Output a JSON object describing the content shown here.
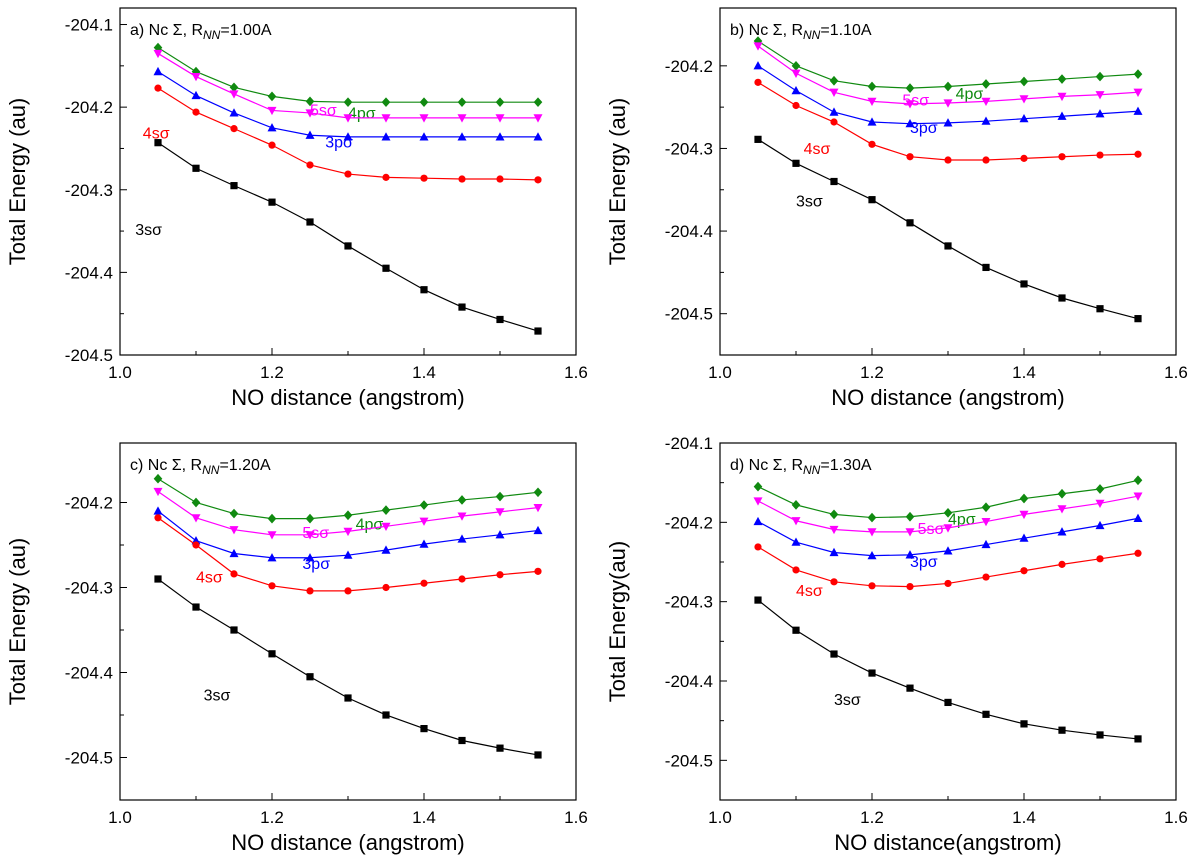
{
  "chart_data": [
    {
      "type": "line",
      "panel": "a",
      "title": "a) Nc Σ, R_NN=1.00A",
      "title_parts": {
        "prefix": "a) Nc Σ, R",
        "sub": "NN",
        "suffix": "=1.00A"
      },
      "xlabel": "NO distance (angstrom)",
      "ylabel": "Total Energy (au)",
      "xlim": [
        1.0,
        1.6
      ],
      "ylim": [
        -204.5,
        -204.08
      ],
      "xticks": [
        "1.0",
        "1.2",
        "1.4",
        "1.6"
      ],
      "yticks": [
        "-204.1",
        "-204.2",
        "-204.3",
        "-204.4",
        "-204.5"
      ],
      "x": [
        1.05,
        1.1,
        1.15,
        1.2,
        1.25,
        1.3,
        1.35,
        1.4,
        1.45,
        1.5,
        1.55
      ],
      "series": [
        {
          "name": "4pσ",
          "color": "#108a10",
          "marker": "diamond",
          "values": [
            -204.128,
            -204.157,
            -204.176,
            -204.187,
            -204.193,
            -204.194,
            -204.194,
            -204.194,
            -204.194,
            -204.194,
            -204.194
          ]
        },
        {
          "name": "5sσ",
          "color": "#ff00ff",
          "marker": "triangle-down",
          "values": [
            -204.135,
            -204.163,
            -204.184,
            -204.204,
            -204.207,
            -204.213,
            -204.213,
            -204.213,
            -204.213,
            -204.213,
            -204.213
          ]
        },
        {
          "name": "3pσ",
          "color": "#0000ff",
          "marker": "triangle-up",
          "values": [
            -204.157,
            -204.186,
            -204.207,
            -204.225,
            -204.234,
            -204.236,
            -204.236,
            -204.236,
            -204.236,
            -204.236,
            -204.236
          ]
        },
        {
          "name": "4sσ",
          "color": "#ff0000",
          "marker": "circle",
          "values": [
            -204.177,
            -204.206,
            -204.226,
            -204.246,
            -204.27,
            -204.281,
            -204.285,
            -204.286,
            -204.287,
            -204.287,
            -204.288
          ]
        },
        {
          "name": "3sσ",
          "color": "#000000",
          "marker": "square",
          "values": [
            -204.243,
            -204.274,
            -204.295,
            -204.315,
            -204.339,
            -204.368,
            -204.395,
            -204.421,
            -204.442,
            -204.457,
            -204.471
          ]
        }
      ]
    },
    {
      "type": "line",
      "panel": "b",
      "title": "b) Nc Σ, R_NN=1.10A",
      "title_parts": {
        "prefix": "b) Nc Σ, R",
        "sub": "NN",
        "suffix": "=1.10A"
      },
      "xlabel": "NO distance (angstrom)",
      "ylabel": "Total Energy (au)",
      "xlim": [
        1.0,
        1.6
      ],
      "ylim": [
        -204.55,
        -204.13
      ],
      "xticks": [
        "1.0",
        "1.2",
        "1.4",
        "1.6"
      ],
      "yticks": [
        "-204.2",
        "-204.3",
        "-204.4",
        "-204.5"
      ],
      "x": [
        1.05,
        1.1,
        1.15,
        1.2,
        1.25,
        1.3,
        1.35,
        1.4,
        1.45,
        1.5,
        1.55
      ],
      "series": [
        {
          "name": "4pσ",
          "color": "#108a10",
          "marker": "diamond",
          "values": [
            -204.17,
            -204.2,
            -204.218,
            -204.225,
            -204.227,
            -204.225,
            -204.222,
            -204.219,
            -204.216,
            -204.213,
            -204.21
          ]
        },
        {
          "name": "5sσ",
          "color": "#ff00ff",
          "marker": "triangle-down",
          "values": [
            -204.176,
            -204.209,
            -204.232,
            -204.243,
            -204.246,
            -204.245,
            -204.243,
            -204.24,
            -204.237,
            -204.235,
            -204.232
          ]
        },
        {
          "name": "3pσ",
          "color": "#0000ff",
          "marker": "triangle-up",
          "values": [
            -204.2,
            -204.23,
            -204.256,
            -204.268,
            -204.27,
            -204.269,
            -204.267,
            -204.264,
            -204.261,
            -204.258,
            -204.255
          ]
        },
        {
          "name": "4sσ",
          "color": "#ff0000",
          "marker": "circle",
          "values": [
            -204.22,
            -204.248,
            -204.268,
            -204.295,
            -204.31,
            -204.314,
            -204.314,
            -204.312,
            -204.31,
            -204.308,
            -204.307
          ]
        },
        {
          "name": "3sσ",
          "color": "#000000",
          "marker": "square",
          "values": [
            -204.289,
            -204.318,
            -204.34,
            -204.362,
            -204.39,
            -204.418,
            -204.444,
            -204.464,
            -204.481,
            -204.494,
            -204.506
          ]
        }
      ]
    },
    {
      "type": "line",
      "panel": "c",
      "title": "c) Nc Σ, R_NN=1.20A",
      "title_parts": {
        "prefix": "c) Nc Σ, R",
        "sub": "NN",
        "suffix": "=1.20A"
      },
      "xlabel": "NO distance (angstrom)",
      "ylabel": "Total Energy (au)",
      "xlim": [
        1.0,
        1.6
      ],
      "ylim": [
        -204.55,
        -204.13
      ],
      "xticks": [
        "1.0",
        "1.2",
        "1.4",
        "1.6"
      ],
      "yticks": [
        "-204.2",
        "-204.3",
        "-204.4",
        "-204.5"
      ],
      "x": [
        1.05,
        1.1,
        1.15,
        1.2,
        1.25,
        1.3,
        1.35,
        1.4,
        1.45,
        1.5,
        1.55
      ],
      "series": [
        {
          "name": "4pσ",
          "color": "#108a10",
          "marker": "diamond",
          "values": [
            -204.172,
            -204.2,
            -204.213,
            -204.219,
            -204.219,
            -204.215,
            -204.209,
            -204.203,
            -204.197,
            -204.193,
            -204.188
          ]
        },
        {
          "name": "5sσ",
          "color": "#ff00ff",
          "marker": "triangle-down",
          "values": [
            -204.187,
            -204.218,
            -204.232,
            -204.238,
            -204.238,
            -204.234,
            -204.228,
            -204.222,
            -204.216,
            -204.211,
            -204.206
          ]
        },
        {
          "name": "3pσ",
          "color": "#0000ff",
          "marker": "triangle-up",
          "values": [
            -204.21,
            -204.245,
            -204.26,
            -204.265,
            -204.265,
            -204.262,
            -204.256,
            -204.249,
            -204.243,
            -204.238,
            -204.233
          ]
        },
        {
          "name": "4sσ",
          "color": "#ff0000",
          "marker": "circle",
          "values": [
            -204.218,
            -204.25,
            -204.284,
            -204.298,
            -204.304,
            -204.304,
            -204.3,
            -204.295,
            -204.29,
            -204.285,
            -204.281
          ]
        },
        {
          "name": "3sσ",
          "color": "#000000",
          "marker": "square",
          "values": [
            -204.29,
            -204.323,
            -204.35,
            -204.378,
            -204.405,
            -204.43,
            -204.45,
            -204.466,
            -204.48,
            -204.489,
            -204.497
          ]
        }
      ]
    },
    {
      "type": "line",
      "panel": "d",
      "title": "d) Nc Σ, R_NN=1.30A",
      "title_parts": {
        "prefix": "d) Nc Σ, R",
        "sub": "NN",
        "suffix": "=1.30A"
      },
      "xlabel": "NO distance(angstrom)",
      "ylabel": "Total Energy(au)",
      "xlim": [
        1.0,
        1.6
      ],
      "ylim": [
        -204.55,
        -204.1
      ],
      "xticks": [
        "1.0",
        "1.2",
        "1.4",
        "1.6"
      ],
      "yticks": [
        "-204.1",
        "-204.2",
        "-204.3",
        "-204.4",
        "-204.5"
      ],
      "x": [
        1.05,
        1.1,
        1.15,
        1.2,
        1.25,
        1.3,
        1.35,
        1.4,
        1.45,
        1.5,
        1.55
      ],
      "series": [
        {
          "name": "4pσ",
          "color": "#108a10",
          "marker": "diamond",
          "values": [
            -204.155,
            -204.178,
            -204.19,
            -204.194,
            -204.193,
            -204.188,
            -204.181,
            -204.17,
            -204.164,
            -204.158,
            -204.147
          ]
        },
        {
          "name": "5sσ",
          "color": "#ff00ff",
          "marker": "triangle-down",
          "values": [
            -204.173,
            -204.198,
            -204.209,
            -204.212,
            -204.212,
            -204.207,
            -204.199,
            -204.19,
            -204.183,
            -204.176,
            -204.167
          ]
        },
        {
          "name": "3pσ",
          "color": "#0000ff",
          "marker": "triangle-up",
          "values": [
            -204.199,
            -204.225,
            -204.238,
            -204.242,
            -204.241,
            -204.236,
            -204.228,
            -204.22,
            -204.212,
            -204.204,
            -204.195
          ]
        },
        {
          "name": "4sσ",
          "color": "#ff0000",
          "marker": "circle",
          "values": [
            -204.231,
            -204.26,
            -204.275,
            -204.28,
            -204.281,
            -204.277,
            -204.269,
            -204.261,
            -204.253,
            -204.246,
            -204.239
          ]
        },
        {
          "name": "3sσ",
          "color": "#000000",
          "marker": "square",
          "values": [
            -204.298,
            -204.336,
            -204.366,
            -204.39,
            -204.409,
            -204.427,
            -204.442,
            -204.454,
            -204.462,
            -204.468,
            -204.473
          ]
        }
      ]
    }
  ]
}
